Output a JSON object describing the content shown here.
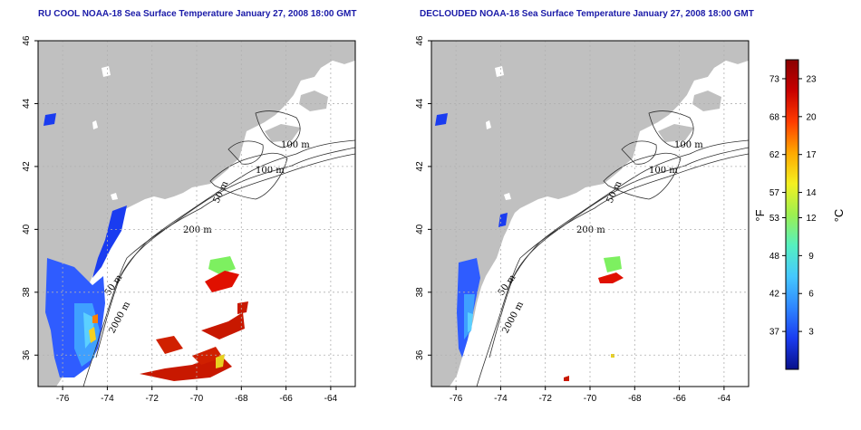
{
  "panels": [
    {
      "id": "left",
      "title": "RU COOL NOAA-18 Sea Surface Temperature January 27, 2008 18:00 GMT",
      "contour_labels": [
        "100 m",
        "100 m",
        "50 m",
        "200 m",
        "50 m",
        "2000 m"
      ]
    },
    {
      "id": "right",
      "title": "DECLOUDED NOAA-18 Sea Surface Temperature January 27, 2008 18:00 GMT",
      "contour_labels": [
        "100 m",
        "100 m",
        "50 m",
        "200 m",
        "50 m",
        "2000 m"
      ]
    }
  ],
  "axes": {
    "x_ticks": [
      "-76",
      "-74",
      "-72",
      "-70",
      "-68",
      "-66",
      "-64"
    ],
    "y_ticks": [
      "46",
      "44",
      "42",
      "40",
      "38",
      "36"
    ],
    "x_range": [
      -77.1,
      -62.9
    ],
    "y_range": [
      35,
      46
    ],
    "grid": true
  },
  "colorbar": {
    "fahrenheit_ticks": [
      "73",
      "68",
      "62",
      "57",
      "53",
      "48",
      "42",
      "37"
    ],
    "celsius_ticks": [
      "23",
      "20",
      "17",
      "14",
      "12",
      "9",
      "6",
      "3"
    ],
    "left_unit": "°F",
    "right_unit": "°C",
    "colors": [
      "#08108a",
      "#1a3cf0",
      "#2f86ff",
      "#45c8ff",
      "#55f0c0",
      "#9cf050",
      "#f4f020",
      "#ffa800",
      "#ff3c00",
      "#c80000",
      "#8a0000"
    ]
  },
  "colors": {
    "land": "#c0c0c0",
    "title": "#1a1aa8",
    "grid": "#b0b0b0"
  }
}
